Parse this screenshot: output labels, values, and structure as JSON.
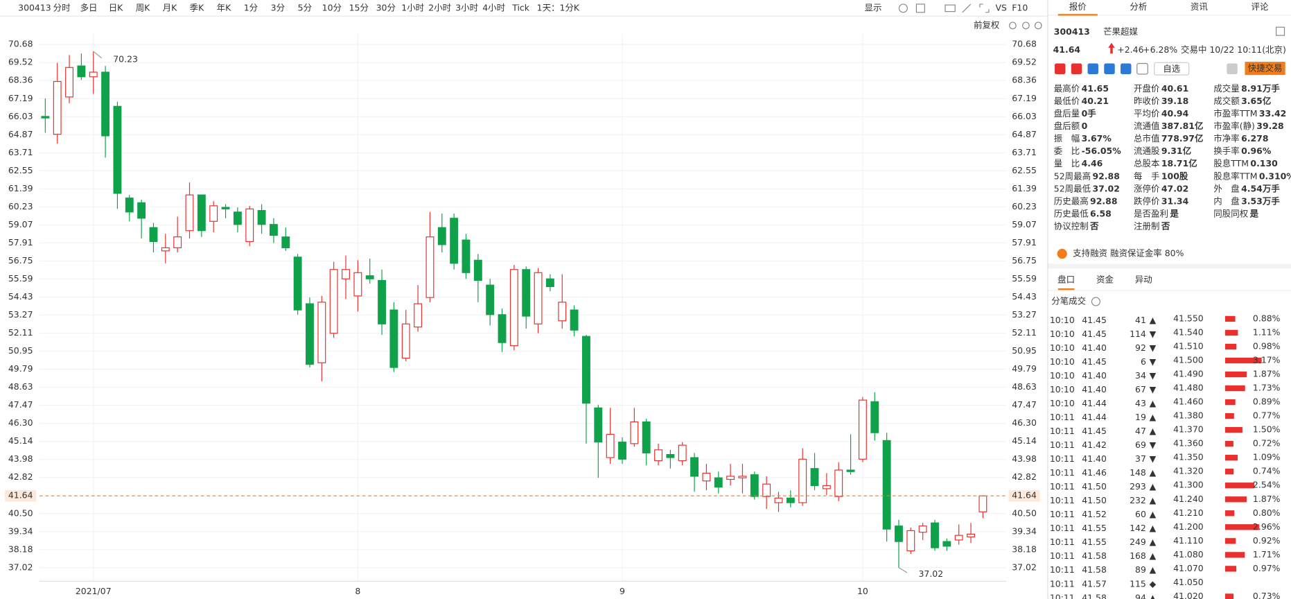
{
  "toolbar": {
    "code": "300413",
    "periods": [
      "分时",
      "多日",
      "日K",
      "周K",
      "月K",
      "季K",
      "年K",
      "1分",
      "3分",
      "5分",
      "10分",
      "15分",
      "30分",
      "1小时",
      "2小时",
      "3小时",
      "4小时",
      "Tick"
    ],
    "active": 2,
    "range": "1天：1分K",
    "display": "显示",
    "vs": "VS",
    "f10": "F10",
    "adjust": "前复权"
  },
  "chart_data": {
    "type": "candlestick",
    "categories": [
      null,
      null,
      null,
      null,
      "2021/07",
      null,
      null,
      null,
      null,
      null,
      null,
      null,
      null,
      null,
      null,
      null,
      null,
      null,
      null,
      null,
      null,
      null,
      null,
      null,
      null,
      null,
      "8",
      null,
      null,
      null,
      null,
      null,
      null,
      null,
      null,
      null,
      null,
      null,
      null,
      null,
      null,
      null,
      null,
      null,
      null,
      null,
      null,
      null,
      "9",
      null,
      null,
      null,
      null,
      null,
      null,
      null,
      null,
      null,
      null,
      null,
      null,
      null,
      null,
      null,
      null,
      null,
      null,
      null,
      "10",
      null,
      null,
      null,
      null,
      null,
      null,
      null,
      null,
      null,
      null
    ],
    "open": [
      66.05,
      64.9,
      67.3,
      69.3,
      68.6,
      68.9,
      66.7,
      60.8,
      60.5,
      58.9,
      57.4,
      57.6,
      58.7,
      61.0,
      59.3,
      60.2,
      59.9,
      58.0,
      60.0,
      59.1,
      58.3,
      57.0,
      54.0,
      50.2,
      52.1,
      55.6,
      54.5,
      55.8,
      55.5,
      53.6,
      50.5,
      52.5,
      54.4,
      58.9,
      59.5,
      58.1,
      56.8,
      55.2,
      53.3,
      51.3,
      56.2,
      52.7,
      55.6,
      52.9,
      53.6,
      51.9,
      47.3,
      44.1,
      45.1,
      45.0,
      46.4,
      43.9,
      44.3,
      43.9,
      44.1,
      42.6,
      42.8,
      42.7,
      42.8,
      43.0,
      41.6,
      41.2,
      41.5,
      41.2,
      43.4,
      42.1,
      41.6,
      43.3,
      44.0,
      47.7,
      45.2,
      39.7,
      38.1,
      39.3,
      39.9,
      38.7,
      38.8,
      39.0,
      40.61
    ],
    "high": [
      67.2,
      69.5,
      70.0,
      70.1,
      70.23,
      69.3,
      67.0,
      61.0,
      60.7,
      59.2,
      58.5,
      59.6,
      61.8,
      61.0,
      60.6,
      60.4,
      60.2,
      60.3,
      60.4,
      59.5,
      58.9,
      57.2,
      54.4,
      54.5,
      56.7,
      57.1,
      56.8,
      56.9,
      56.2,
      54.1,
      53.6,
      55.2,
      59.9,
      59.8,
      59.8,
      58.5,
      57.2,
      55.6,
      53.7,
      56.5,
      56.4,
      56.3,
      55.9,
      55.9,
      53.9,
      52.0,
      47.5,
      47.3,
      45.4,
      47.3,
      46.6,
      45.0,
      44.6,
      45.1,
      44.4,
      43.7,
      43.2,
      43.7,
      43.7,
      43.2,
      42.9,
      41.9,
      42.0,
      44.7,
      44.4,
      43.1,
      43.8,
      45.6,
      48.0,
      48.3,
      45.7,
      40.1,
      39.6,
      39.9,
      40.1,
      38.9,
      39.8,
      39.9,
      41.65
    ],
    "low": [
      65.0,
      64.3,
      66.9,
      68.4,
      67.5,
      63.4,
      60.1,
      59.3,
      58.2,
      57.3,
      56.6,
      57.3,
      58.2,
      58.3,
      58.6,
      59.5,
      58.6,
      57.7,
      58.5,
      57.9,
      57.4,
      53.3,
      49.9,
      49.0,
      51.8,
      54.3,
      53.5,
      55.3,
      52.0,
      49.6,
      50.3,
      52.2,
      54.1,
      57.3,
      56.2,
      55.6,
      54.1,
      52.6,
      50.9,
      51.0,
      52.4,
      52.1,
      54.8,
      52.4,
      51.9,
      45.0,
      42.8,
      43.7,
      43.7,
      44.8,
      43.6,
      43.6,
      43.4,
      43.6,
      41.9,
      42.0,
      41.8,
      42.3,
      41.8,
      41.4,
      40.8,
      40.6,
      40.9,
      41.0,
      42.0,
      41.7,
      41.3,
      43.0,
      43.8,
      45.2,
      38.7,
      37.02,
      37.9,
      38.8,
      38.1,
      38.1,
      38.5,
      38.6,
      40.21
    ],
    "close": [
      65.95,
      68.3,
      69.2,
      68.6,
      68.9,
      64.8,
      61.1,
      59.9,
      59.5,
      58.0,
      57.6,
      58.3,
      61.0,
      58.7,
      60.3,
      60.1,
      59.1,
      60.1,
      59.1,
      58.4,
      57.6,
      53.6,
      50.1,
      54.1,
      56.2,
      56.2,
      56.0,
      55.6,
      52.7,
      49.9,
      52.7,
      54.0,
      58.3,
      57.8,
      56.6,
      56.0,
      55.5,
      53.3,
      51.5,
      56.2,
      53.2,
      56.0,
      55.1,
      54.1,
      52.3,
      47.6,
      45.1,
      45.6,
      44.0,
      46.4,
      44.4,
      44.6,
      44.1,
      44.9,
      42.9,
      43.1,
      42.2,
      42.9,
      42.9,
      41.6,
      42.4,
      41.5,
      41.2,
      44.0,
      42.3,
      42.3,
      43.3,
      43.2,
      47.8,
      45.7,
      39.5,
      38.7,
      39.4,
      39.7,
      38.3,
      38.4,
      39.1,
      39.18,
      41.64
    ],
    "ylim": [
      36.17,
      71.42
    ],
    "yticks": [
      70.68,
      69.52,
      68.36,
      67.19,
      66.03,
      64.87,
      63.71,
      62.55,
      61.39,
      60.23,
      59.07,
      57.91,
      56.75,
      55.59,
      54.43,
      53.27,
      52.11,
      50.95,
      49.79,
      48.63,
      47.47,
      {
        "value": 46.3,
        "label": "46.30"
      },
      45.14,
      43.98,
      42.82,
      {
        "value": 40.5,
        "label": "40.50"
      },
      39.34,
      38.18,
      37.02
    ],
    "up_color": "#e8312f",
    "down_color": "#0fa24a",
    "grid": true,
    "price_line": 41.64,
    "high_label": 70.23,
    "low_label": 37.02
  },
  "quote": {
    "tabs": [
      "报价",
      "分析",
      "资讯",
      "评论"
    ],
    "active": 0,
    "code": "300413",
    "name": "芒果超媒",
    "price": "41.64",
    "change": "+2.46",
    "change_pct": "+6.28%",
    "status": "交易中 10/22 10:11(北京)",
    "watch": "自选",
    "trade": "快捷交易",
    "stats": [
      {
        "label": "最高价",
        "value": "41.65",
        "color": "#e8312f"
      },
      {
        "label": "开盘价",
        "value": "40.61",
        "color": "#e8312f"
      },
      {
        "label": "成交量",
        "value": "8.91万手"
      },
      {
        "label": "最低价",
        "value": "40.21",
        "color": "#e8312f"
      },
      {
        "label": "昨收价",
        "value": "39.18"
      },
      {
        "label": "成交额",
        "value": "3.65亿"
      },
      {
        "label": "盘后量",
        "value": "0手"
      },
      {
        "label": "平均价",
        "value": "40.94",
        "color": "#e8312f"
      },
      {
        "label": "市盈率TTM",
        "value": "33.42"
      },
      {
        "label": "盘后额",
        "value": "0"
      },
      {
        "label": "流通值",
        "value": "387.81亿"
      },
      {
        "label": "市盈率(静)",
        "value": "39.28"
      },
      {
        "label": "振　幅",
        "value": "3.67%"
      },
      {
        "label": "总市值",
        "value": "778.97亿"
      },
      {
        "label": "市净率",
        "value": "6.278"
      },
      {
        "label": "委　比",
        "value": "-56.05%"
      },
      {
        "label": "流通股",
        "value": "9.31亿"
      },
      {
        "label": "换手率",
        "value": "0.96%"
      },
      {
        "label": "量　比",
        "value": "4.46"
      },
      {
        "label": "总股本",
        "value": "18.71亿"
      },
      {
        "label": "股息TTM",
        "value": "0.130"
      },
      {
        "label": "52周最高",
        "value": "92.88",
        "color": "#e8312f"
      },
      {
        "label": "每　手",
        "value": "100股"
      },
      {
        "label": "股息率TTM",
        "value": "0.310%"
      },
      {
        "label": "52周最低",
        "value": "37.02",
        "color": "#0fa24a"
      },
      {
        "label": "涨停价",
        "value": "47.02",
        "color": "#e8312f"
      },
      {
        "label": "外　盘",
        "value": "4.54万手",
        "color": "#e8312f"
      },
      {
        "label": "历史最高",
        "value": "92.88",
        "color": "#e8312f"
      },
      {
        "label": "跌停价",
        "value": "31.34",
        "color": "#0fa24a"
      },
      {
        "label": "内　盘",
        "value": "3.53万手",
        "color": "#0fa24a"
      },
      {
        "label": "历史最低",
        "value": "6.58",
        "color": "#0fa24a"
      },
      {
        "label": "是否盈利",
        "value": "是"
      },
      {
        "label": "同股同权",
        "value": "是"
      },
      {
        "label": "协议控制",
        "value": "否"
      },
      {
        "label": "注册制",
        "value": "否"
      }
    ],
    "margin": "支持融资 融资保证金率 80%",
    "subtabs": [
      "盘口",
      "资金",
      "异动"
    ],
    "ticks_title": "分笔成交",
    "trades": [
      {
        "time": "10:10",
        "price": "41.45",
        "volume": "41",
        "dir": "▲"
      },
      {
        "time": "10:10",
        "price": "41.45",
        "volume": "114",
        "dir": "▼"
      },
      {
        "time": "10:10",
        "price": "41.40",
        "volume": "92",
        "dir": "▼"
      },
      {
        "time": "10:10",
        "price": "41.45",
        "volume": "6",
        "dir": "▼"
      },
      {
        "time": "10:10",
        "price": "41.40",
        "volume": "34",
        "dir": "▼"
      },
      {
        "time": "10:10",
        "price": "41.40",
        "volume": "67",
        "dir": "▼"
      },
      {
        "time": "10:10",
        "price": "41.44",
        "volume": "43",
        "dir": "▲"
      },
      {
        "time": "10:11",
        "price": "41.44",
        "volume": "19",
        "dir": "▲"
      },
      {
        "time": "10:11",
        "price": "41.45",
        "volume": "47",
        "dir": "▲"
      },
      {
        "time": "10:11",
        "price": "41.42",
        "volume": "69",
        "dir": "▼"
      },
      {
        "time": "10:11",
        "price": "41.40",
        "volume": "37",
        "dir": "▼"
      },
      {
        "time": "10:11",
        "price": "41.46",
        "volume": "148",
        "dir": "▲"
      },
      {
        "time": "10:11",
        "price": "41.50",
        "volume": "293",
        "dir": "▲"
      },
      {
        "time": "10:11",
        "price": "41.50",
        "volume": "232",
        "dir": "▲"
      },
      {
        "time": "10:11",
        "price": "41.52",
        "volume": "60",
        "dir": "▲"
      },
      {
        "time": "10:11",
        "price": "41.55",
        "volume": "142",
        "dir": "▲"
      },
      {
        "time": "10:11",
        "price": "41.55",
        "volume": "249",
        "dir": "▲"
      },
      {
        "time": "10:11",
        "price": "41.58",
        "volume": "168",
        "dir": "▲"
      },
      {
        "time": "10:11",
        "price": "41.58",
        "volume": "89",
        "dir": "▲"
      },
      {
        "time": "10:11",
        "price": "41.57",
        "volume": "115",
        "dir": "◆"
      },
      {
        "time": "10:11",
        "price": "41.58",
        "volume": "94",
        "dir": "▲"
      }
    ],
    "distribution": {
      "prices": [
        "41.550",
        "41.540",
        "41.510",
        "41.500",
        "41.490",
        "41.480",
        "41.460",
        "41.380",
        "41.370",
        "41.360",
        "41.350",
        "41.320",
        "41.300",
        "41.240",
        "41.210",
        "41.200",
        "41.110",
        "41.080",
        "41.070",
        "41.050",
        "41.020"
      ],
      "values": [
        0.88,
        1.11,
        0.98,
        3.17,
        1.87,
        1.73,
        0.89,
        0.77,
        1.5,
        0.72,
        1.09,
        0.74,
        2.54,
        1.87,
        0.8,
        2.96,
        0.92,
        1.71,
        0.97,
        null,
        0.73
      ],
      "value_labels": [
        "0.88%",
        "1.11%",
        "0.98%",
        "3.17%",
        "1.87%",
        "1.73%",
        "0.89%",
        "0.77%",
        "1.50%",
        "0.72%",
        "1.09%",
        "0.74%",
        "2.54%",
        "1.87%",
        "0.80%",
        "2.96%",
        "0.92%",
        "1.71%",
        "0.97%",
        null,
        "0.73%"
      ],
      "color": "#e8312f"
    }
  }
}
